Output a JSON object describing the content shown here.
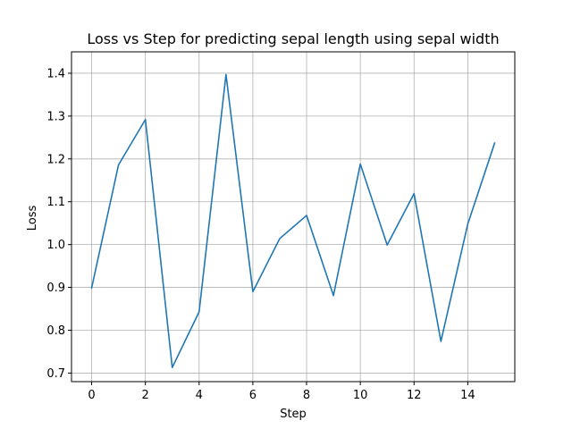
{
  "chart_data": {
    "type": "line",
    "title": "Loss vs Step for predicting sepal length using sepal width",
    "xlabel": "Step",
    "ylabel": "Loss",
    "xlim": [
      -0.75,
      15.75
    ],
    "ylim": [
      0.68,
      1.45
    ],
    "xticks": [
      0,
      2,
      4,
      6,
      8,
      10,
      12,
      14
    ],
    "yticks": [
      0.7,
      0.8,
      0.9,
      1.0,
      1.1,
      1.2,
      1.3,
      1.4
    ],
    "xtick_labels": [
      "0",
      "2",
      "4",
      "6",
      "8",
      "10",
      "12",
      "14"
    ],
    "ytick_labels": [
      "0.7",
      "0.8",
      "0.9",
      "1.0",
      "1.1",
      "1.2",
      "1.3",
      "1.4"
    ],
    "grid": true,
    "series": [
      {
        "color": "#1f77b4",
        "x": [
          0,
          1,
          2,
          3,
          4,
          5,
          6,
          7,
          8,
          9,
          10,
          11,
          12,
          13,
          14,
          15
        ],
        "y": [
          0.899,
          1.186,
          1.292,
          0.713,
          0.843,
          1.397,
          0.89,
          1.014,
          1.068,
          0.881,
          1.188,
          0.999,
          1.119,
          0.774,
          1.048,
          1.237
        ]
      }
    ]
  }
}
